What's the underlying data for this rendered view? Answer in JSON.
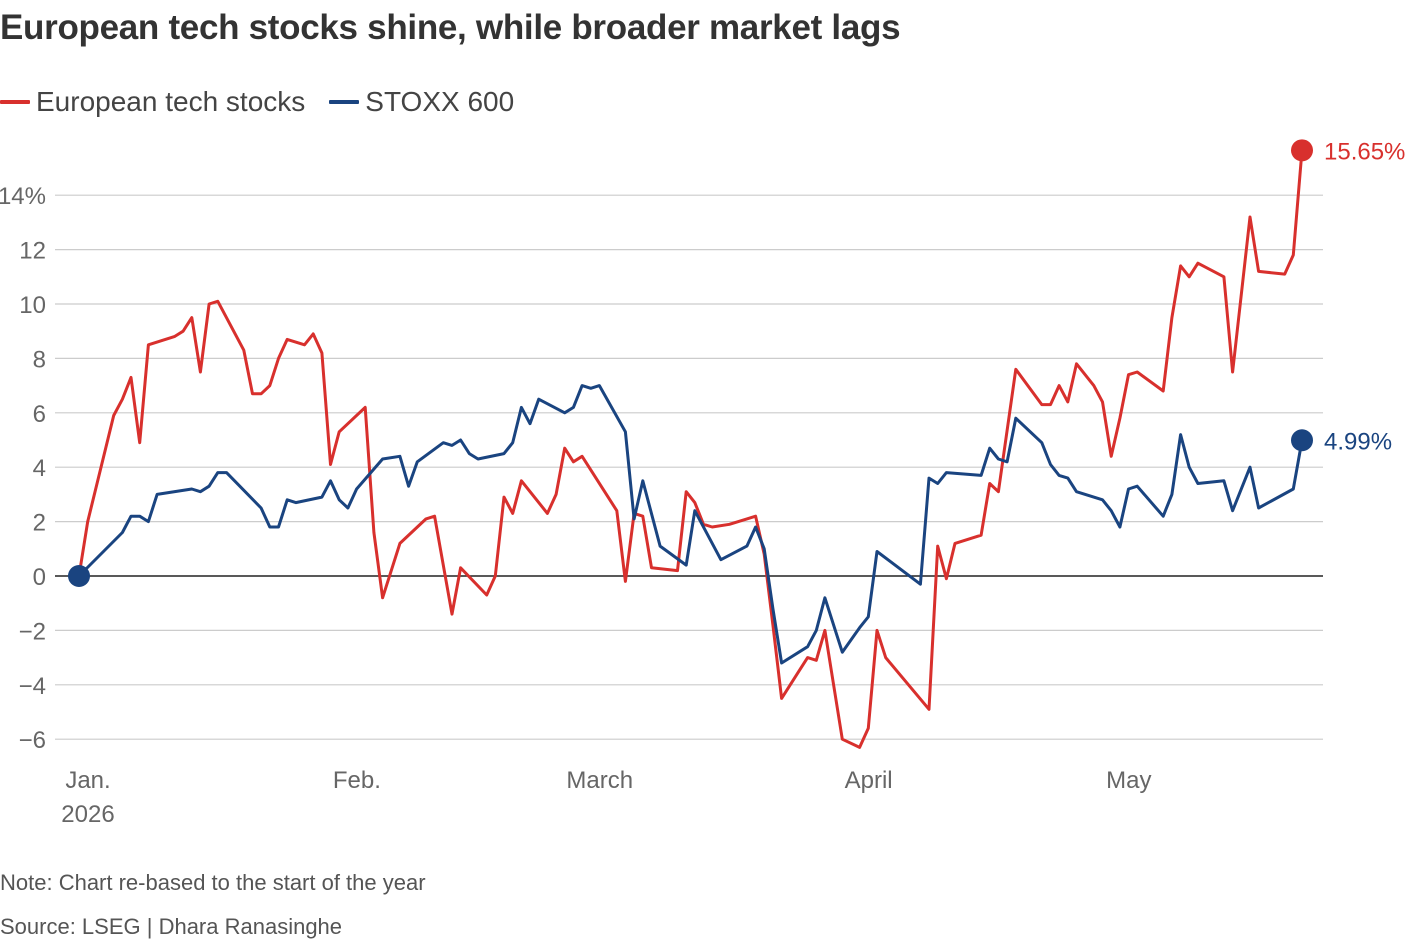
{
  "title": "European tech stocks shine, while broader market lags",
  "note": "Note: Chart re-based to the start of the year",
  "source": "Source: LSEG | Dhara Ranasinghe",
  "colors": {
    "tech": "#d8302d",
    "stoxx": "#1a4480",
    "grid": "#cccccc",
    "zero": "#222222",
    "tick": "#666666"
  },
  "chart_data": {
    "type": "line",
    "title": "European tech stocks shine, while broader market lags",
    "ylim": [
      -7,
      16
    ],
    "yticks": [
      -6,
      -4,
      -2,
      0,
      2,
      4,
      6,
      8,
      10,
      12,
      14
    ],
    "ytick_labels": [
      "−6",
      "−4",
      "−2",
      "0",
      "2",
      "4",
      "6",
      "8",
      "10",
      "12",
      "14%"
    ],
    "grid": true,
    "legend_position": "top-left",
    "xlim": [
      "2026-01-01",
      "2026-05-22"
    ],
    "xticks": [
      {
        "date": "2026-01-01",
        "line1": "Jan.",
        "line2": "2026"
      },
      {
        "date": "2026-02-01",
        "line1": "Feb.",
        "line2": ""
      },
      {
        "date": "2026-03-01",
        "line1": "March",
        "line2": ""
      },
      {
        "date": "2026-04-01",
        "line1": "April",
        "line2": ""
      },
      {
        "date": "2026-05-01",
        "line1": "May",
        "line2": ""
      }
    ],
    "series": [
      {
        "name": "European tech stocks",
        "color": "#d8302d",
        "end_label": "15.65%",
        "points": [
          [
            "2026-01-01",
            0
          ],
          [
            "2026-01-02",
            2
          ],
          [
            "2026-01-05",
            5.9
          ],
          [
            "2026-01-06",
            6.5
          ],
          [
            "2026-01-07",
            7.3
          ],
          [
            "2026-01-08",
            4.9
          ],
          [
            "2026-01-09",
            8.5
          ],
          [
            "2026-01-12",
            8.8
          ],
          [
            "2026-01-13",
            9
          ],
          [
            "2026-01-14",
            9.5
          ],
          [
            "2026-01-15",
            7.5
          ],
          [
            "2026-01-16",
            10
          ],
          [
            "2026-01-17",
            10.1
          ],
          [
            "2026-01-20",
            8.3
          ],
          [
            "2026-01-21",
            6.7
          ],
          [
            "2026-01-22",
            6.7
          ],
          [
            "2026-01-23",
            7
          ],
          [
            "2026-01-24",
            8
          ],
          [
            "2026-01-25",
            8.7
          ],
          [
            "2026-01-27",
            8.5
          ],
          [
            "2026-01-28",
            8.9
          ],
          [
            "2026-01-29",
            8.2
          ],
          [
            "2026-01-30",
            4.1
          ],
          [
            "2026-01-31",
            5.3
          ],
          [
            "2026-02-03",
            6.2
          ],
          [
            "2026-02-04",
            1.6
          ],
          [
            "2026-02-05",
            -0.8
          ],
          [
            "2026-02-07",
            1.2
          ],
          [
            "2026-02-10",
            2.1
          ],
          [
            "2026-02-11",
            2.2
          ],
          [
            "2026-02-13",
            -1.4
          ],
          [
            "2026-02-14",
            0.3
          ],
          [
            "2026-02-17",
            -0.7
          ],
          [
            "2026-02-18",
            0
          ],
          [
            "2026-02-19",
            2.9
          ],
          [
            "2026-02-20",
            2.3
          ],
          [
            "2026-02-21",
            3.5
          ],
          [
            "2026-02-24",
            2.3
          ],
          [
            "2026-02-25",
            3
          ],
          [
            "2026-02-26",
            4.7
          ],
          [
            "2026-02-27",
            4.2
          ],
          [
            "2026-02-28",
            4.4
          ],
          [
            "2026-03-04",
            2.4
          ],
          [
            "2026-03-05",
            -0.2
          ],
          [
            "2026-03-06",
            2.3
          ],
          [
            "2026-03-07",
            2.2
          ],
          [
            "2026-03-08",
            0.3
          ],
          [
            "2026-03-11",
            0.2
          ],
          [
            "2026-03-12",
            3.1
          ],
          [
            "2026-03-13",
            2.7
          ],
          [
            "2026-03-14",
            1.9
          ],
          [
            "2026-03-15",
            1.8
          ],
          [
            "2026-03-17",
            1.9
          ],
          [
            "2026-03-19",
            2.1
          ],
          [
            "2026-03-20",
            2.2
          ],
          [
            "2026-03-21",
            0.8
          ],
          [
            "2026-03-22",
            -1.8
          ],
          [
            "2026-03-23",
            -4.5
          ],
          [
            "2026-03-25",
            -3.5
          ],
          [
            "2026-03-26",
            -3
          ],
          [
            "2026-03-27",
            -3.1
          ],
          [
            "2026-03-28",
            -2
          ],
          [
            "2026-03-29",
            -4
          ],
          [
            "2026-03-30",
            -6
          ],
          [
            "2026-04-01",
            -6.3
          ],
          [
            "2026-04-02",
            -5.6
          ],
          [
            "2026-04-03",
            -2
          ],
          [
            "2026-04-04",
            -3
          ],
          [
            "2026-04-09",
            -4.9
          ],
          [
            "2026-04-10",
            1.1
          ],
          [
            "2026-04-11",
            -0.1
          ],
          [
            "2026-04-12",
            1.2
          ],
          [
            "2026-04-15",
            1.5
          ],
          [
            "2026-04-16",
            3.4
          ],
          [
            "2026-04-17",
            3.1
          ],
          [
            "2026-04-19",
            7.6
          ],
          [
            "2026-04-22",
            6.3
          ],
          [
            "2026-04-23",
            6.3
          ],
          [
            "2026-04-24",
            7
          ],
          [
            "2026-04-25",
            6.4
          ],
          [
            "2026-04-26",
            7.8
          ],
          [
            "2026-04-28",
            7
          ],
          [
            "2026-04-29",
            6.4
          ],
          [
            "2026-04-30",
            4.4
          ],
          [
            "2026-05-01",
            5.8
          ],
          [
            "2026-05-02",
            7.4
          ],
          [
            "2026-05-03",
            7.5
          ],
          [
            "2026-05-06",
            6.8
          ],
          [
            "2026-05-07",
            9.5
          ],
          [
            "2026-05-08",
            11.4
          ],
          [
            "2026-05-09",
            11
          ],
          [
            "2026-05-10",
            11.5
          ],
          [
            "2026-05-13",
            11
          ],
          [
            "2026-05-14",
            7.5
          ],
          [
            "2026-05-16",
            13.2
          ],
          [
            "2026-05-17",
            11.2
          ],
          [
            "2026-05-20",
            11.1
          ],
          [
            "2026-05-21",
            11.8
          ],
          [
            "2026-05-22",
            15.65
          ]
        ]
      },
      {
        "name": "STOXX 600",
        "color": "#1a4480",
        "end_label": "4.99%",
        "points": [
          [
            "2026-01-01",
            0
          ],
          [
            "2026-01-06",
            1.6
          ],
          [
            "2026-01-07",
            2.2
          ],
          [
            "2026-01-08",
            2.2
          ],
          [
            "2026-01-09",
            2
          ],
          [
            "2026-01-10",
            3
          ],
          [
            "2026-01-14",
            3.2
          ],
          [
            "2026-01-15",
            3.1
          ],
          [
            "2026-01-16",
            3.3
          ],
          [
            "2026-01-17",
            3.8
          ],
          [
            "2026-01-18",
            3.8
          ],
          [
            "2026-01-22",
            2.5
          ],
          [
            "2026-01-23",
            1.8
          ],
          [
            "2026-01-24",
            1.8
          ],
          [
            "2026-01-25",
            2.8
          ],
          [
            "2026-01-26",
            2.7
          ],
          [
            "2026-01-29",
            2.9
          ],
          [
            "2026-01-30",
            3.5
          ],
          [
            "2026-01-31",
            2.8
          ],
          [
            "2026-02-01",
            2.5
          ],
          [
            "2026-02-02",
            3.2
          ],
          [
            "2026-02-05",
            4.3
          ],
          [
            "2026-02-07",
            4.4
          ],
          [
            "2026-02-08",
            3.3
          ],
          [
            "2026-02-09",
            4.2
          ],
          [
            "2026-02-12",
            4.9
          ],
          [
            "2026-02-13",
            4.8
          ],
          [
            "2026-02-14",
            5
          ],
          [
            "2026-02-15",
            4.5
          ],
          [
            "2026-02-16",
            4.3
          ],
          [
            "2026-02-19",
            4.5
          ],
          [
            "2026-02-20",
            4.9
          ],
          [
            "2026-02-21",
            6.2
          ],
          [
            "2026-02-22",
            5.6
          ],
          [
            "2026-02-23",
            6.5
          ],
          [
            "2026-02-26",
            6
          ],
          [
            "2026-02-27",
            6.2
          ],
          [
            "2026-02-28",
            7
          ],
          [
            "2026-03-01",
            6.9
          ],
          [
            "2026-03-02",
            7
          ],
          [
            "2026-03-05",
            5.3
          ],
          [
            "2026-03-06",
            2.1
          ],
          [
            "2026-03-07",
            3.5
          ],
          [
            "2026-03-09",
            1.1
          ],
          [
            "2026-03-12",
            0.4
          ],
          [
            "2026-03-13",
            2.4
          ],
          [
            "2026-03-16",
            0.6
          ],
          [
            "2026-03-19",
            1.1
          ],
          [
            "2026-03-20",
            1.8
          ],
          [
            "2026-03-21",
            1
          ],
          [
            "2026-03-22",
            -1.2
          ],
          [
            "2026-03-23",
            -3.2
          ],
          [
            "2026-03-26",
            -2.6
          ],
          [
            "2026-03-27",
            -2
          ],
          [
            "2026-03-28",
            -0.8
          ],
          [
            "2026-03-30",
            -2.8
          ],
          [
            "2026-04-01",
            -1.9
          ],
          [
            "2026-04-02",
            -1.5
          ],
          [
            "2026-04-03",
            0.9
          ],
          [
            "2026-04-08",
            -0.3
          ],
          [
            "2026-04-09",
            3.6
          ],
          [
            "2026-04-10",
            3.4
          ],
          [
            "2026-04-11",
            3.8
          ],
          [
            "2026-04-15",
            3.7
          ],
          [
            "2026-04-16",
            4.7
          ],
          [
            "2026-04-17",
            4.3
          ],
          [
            "2026-04-18",
            4.2
          ],
          [
            "2026-04-19",
            5.8
          ],
          [
            "2026-04-22",
            4.9
          ],
          [
            "2026-04-23",
            4.1
          ],
          [
            "2026-04-24",
            3.7
          ],
          [
            "2026-04-25",
            3.6
          ],
          [
            "2026-04-26",
            3.1
          ],
          [
            "2026-04-29",
            2.8
          ],
          [
            "2026-04-30",
            2.4
          ],
          [
            "2026-05-01",
            1.8
          ],
          [
            "2026-05-02",
            3.2
          ],
          [
            "2026-05-03",
            3.3
          ],
          [
            "2026-05-06",
            2.2
          ],
          [
            "2026-05-07",
            3
          ],
          [
            "2026-05-08",
            5.2
          ],
          [
            "2026-05-09",
            4
          ],
          [
            "2026-05-10",
            3.4
          ],
          [
            "2026-05-13",
            3.5
          ],
          [
            "2026-05-14",
            2.4
          ],
          [
            "2026-05-16",
            4
          ],
          [
            "2026-05-17",
            2.5
          ],
          [
            "2026-05-21",
            3.2
          ],
          [
            "2026-05-22",
            4.99
          ]
        ]
      }
    ]
  }
}
